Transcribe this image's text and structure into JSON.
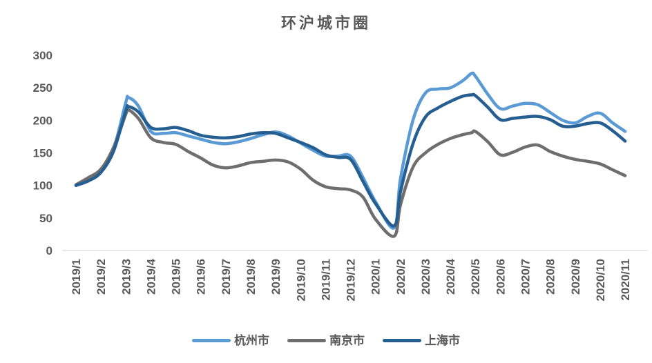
{
  "chart_data": {
    "type": "line",
    "title": "环沪城市圈",
    "smooth": true,
    "grid": false,
    "legend_position": "bottom",
    "y_axis": {
      "min": 0,
      "max": 300,
      "step": 50,
      "tick_labels": [
        "0",
        "50",
        "100",
        "150",
        "200",
        "250",
        "300"
      ]
    },
    "x_axis": {
      "tick_labels": [
        "2019/1",
        "2019/2",
        "2019/3",
        "2019/4",
        "2019/5",
        "2019/6",
        "2019/7",
        "2019/8",
        "2019/9",
        "2019/10",
        "2019/11",
        "2019/12",
        "2020/1",
        "2020/2",
        "2020/3",
        "2020/4",
        "2020/5",
        "2020/6",
        "2020/7",
        "2020/8",
        "2020/9",
        "2020/10",
        "2020/11"
      ],
      "label_rotation_deg": -90
    },
    "x_note": "x values are months counted from 2019/1 (0 = 2019/1, 22 = 2020/11); sub-monthly points estimated from curve shape",
    "x": [
      0,
      0.5,
      1,
      1.5,
      2,
      2.1,
      2.5,
      3,
      3.5,
      4,
      4.5,
      5,
      5.5,
      6,
      6.5,
      7,
      7.5,
      8,
      8.5,
      9,
      9.5,
      10,
      10.5,
      11,
      11.5,
      12,
      12.75,
      13,
      13.5,
      14,
      14.5,
      15,
      15.5,
      15.85,
      16,
      16.5,
      17,
      17.5,
      18,
      18.5,
      19,
      19.5,
      20,
      20.5,
      21,
      21.5,
      22
    ],
    "series": [
      {
        "id": "hangzhou",
        "name": "杭州市",
        "color": "#5B9BD5",
        "values": [
          100,
          108,
          121,
          155,
          228,
          235,
          222,
          183,
          180,
          181,
          176,
          171,
          166,
          164,
          167,
          172,
          178,
          182,
          176,
          165,
          154,
          145,
          145,
          145,
          112,
          75,
          35,
          110,
          200,
          242,
          248,
          250,
          261,
          272,
          268,
          240,
          218,
          222,
          226,
          224,
          212,
          200,
          196,
          206,
          211,
          196,
          183
        ]
      },
      {
        "id": "nanjing",
        "name": "南京市",
        "color": "#6E6E6E",
        "values": [
          101,
          112,
          125,
          158,
          210,
          216,
          203,
          173,
          166,
          163,
          152,
          142,
          131,
          127,
          130,
          135,
          137,
          139,
          136,
          125,
          108,
          98,
          95,
          93,
          82,
          48,
          22,
          70,
          128,
          150,
          163,
          172,
          178,
          181,
          183,
          167,
          147,
          151,
          159,
          162,
          152,
          145,
          140,
          137,
          133,
          124,
          115
        ]
      },
      {
        "id": "shanghai",
        "name": "上海市",
        "color": "#255E91",
        "values": [
          100,
          107,
          120,
          152,
          215,
          221,
          213,
          189,
          187,
          189,
          184,
          177,
          174,
          173,
          175,
          179,
          181,
          180,
          173,
          166,
          158,
          147,
          143,
          140,
          106,
          72,
          38,
          90,
          164,
          205,
          219,
          229,
          237,
          239,
          238,
          220,
          201,
          203,
          205,
          206,
          201,
          191,
          191,
          195,
          196,
          184,
          168
        ]
      }
    ]
  },
  "colors": {
    "axis_text": "#595959",
    "axis_line": "#D9D9D9",
    "background": "#FFFFFF"
  }
}
